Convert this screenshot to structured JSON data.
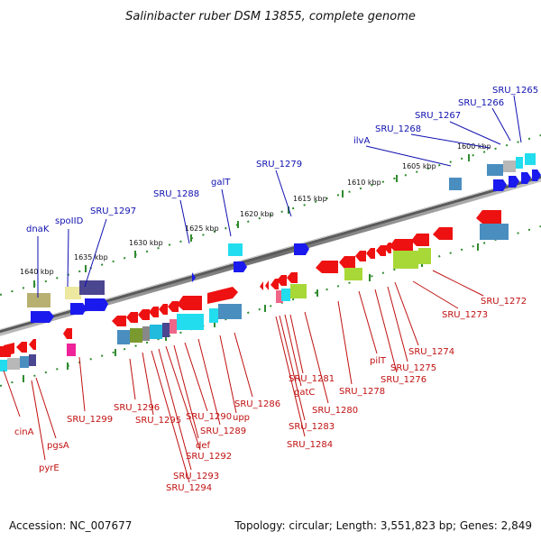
{
  "title": "Salinibacter ruber DSM 13855, complete genome",
  "footer": {
    "accession": "Accession: NC_007677",
    "summary": "Topology: circular; Length: 3,551,823 bp; Genes: 2,849"
  },
  "colors": {
    "top_label": "#1010b0",
    "bottom_label": "#c01010",
    "backbone": "#7a7a7a",
    "tick": "#2e8b2e"
  },
  "scale": [
    {
      "label": "1640 kbp"
    },
    {
      "label": "1635 kbp"
    },
    {
      "label": "1630 kbp"
    },
    {
      "label": "1625 kbp"
    },
    {
      "label": "1620 kbp"
    },
    {
      "label": "1615 kbp"
    },
    {
      "label": "1610 kbp"
    },
    {
      "label": "1605 kbp"
    },
    {
      "label": "1600 kbp"
    }
  ],
  "top_labels": [
    {
      "text": "dnaK"
    },
    {
      "text": "spoIID"
    },
    {
      "text": "SRU_1297"
    },
    {
      "text": "SRU_1288"
    },
    {
      "text": "galT"
    },
    {
      "text": "SRU_1279"
    },
    {
      "text": "ilvA"
    },
    {
      "text": "SRU_1268"
    },
    {
      "text": "SRU_1267"
    },
    {
      "text": "SRU_1266"
    },
    {
      "text": "SRU_1265"
    }
  ],
  "bottom_labels": [
    {
      "text": "cinA"
    },
    {
      "text": "pyrE"
    },
    {
      "text": "pgsA"
    },
    {
      "text": "SRU_1299"
    },
    {
      "text": "SRU_1296"
    },
    {
      "text": "SRU_1295"
    },
    {
      "text": "SRU_1294"
    },
    {
      "text": "SRU_1293"
    },
    {
      "text": "SRU_1292"
    },
    {
      "text": "def"
    },
    {
      "text": "SRU_1290"
    },
    {
      "text": "SRU_1289"
    },
    {
      "text": "upp"
    },
    {
      "text": "SRU_1286"
    },
    {
      "text": "SRU_1284"
    },
    {
      "text": "SRU_1283"
    },
    {
      "text": "gatC"
    },
    {
      "text": "SRU_1281"
    },
    {
      "text": "SRU_1280"
    },
    {
      "text": "SRU_1278"
    },
    {
      "text": "pilT"
    },
    {
      "text": "SRU_1276"
    },
    {
      "text": "SRU_1275"
    },
    {
      "text": "SRU_1274"
    },
    {
      "text": "SRU_1273"
    },
    {
      "text": "SRU_1272"
    }
  ]
}
